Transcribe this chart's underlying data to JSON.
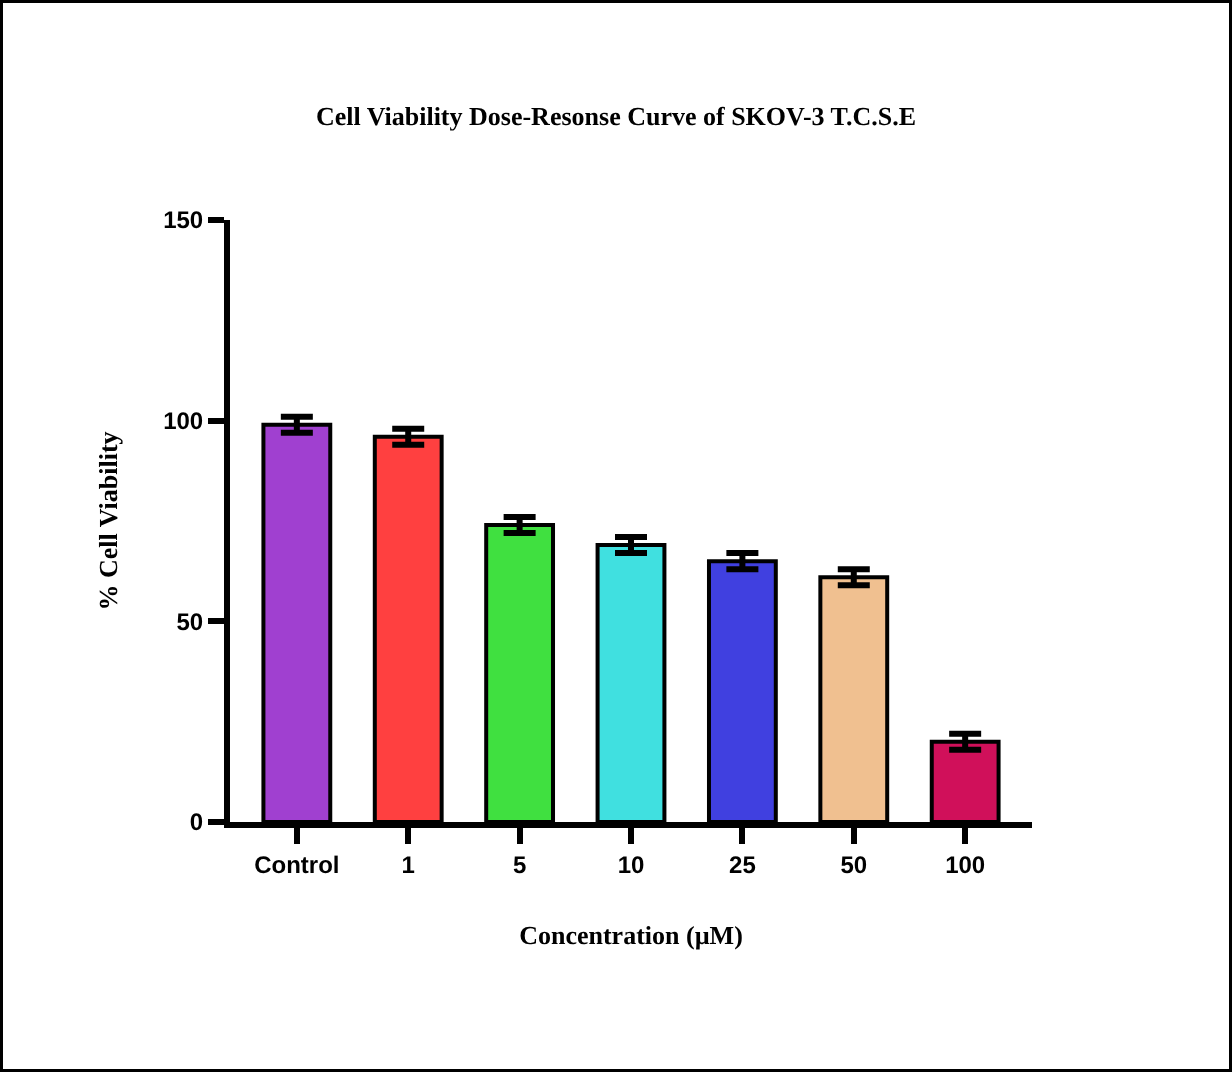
{
  "chart_data": {
    "type": "bar",
    "title": "Cell Viability Dose-Resonse Curve of SKOV-3 T.C.S.E",
    "xlabel": "Concentration (µM)",
    "ylabel": "% Cell Viability",
    "categories": [
      "Control",
      "1",
      "5",
      "10",
      "25",
      "50",
      "100"
    ],
    "values": [
      99,
      96,
      74,
      69,
      65,
      61,
      20
    ],
    "colors": [
      "#a040d0",
      "#ff4040",
      "#40e040",
      "#40e0e0",
      "#4040e0",
      "#f0c090",
      "#d0105a"
    ],
    "errors": [
      2,
      2,
      2,
      2,
      2,
      2,
      2
    ],
    "ylim": [
      0,
      150
    ],
    "yticks": [
      0,
      50,
      100,
      150
    ]
  }
}
